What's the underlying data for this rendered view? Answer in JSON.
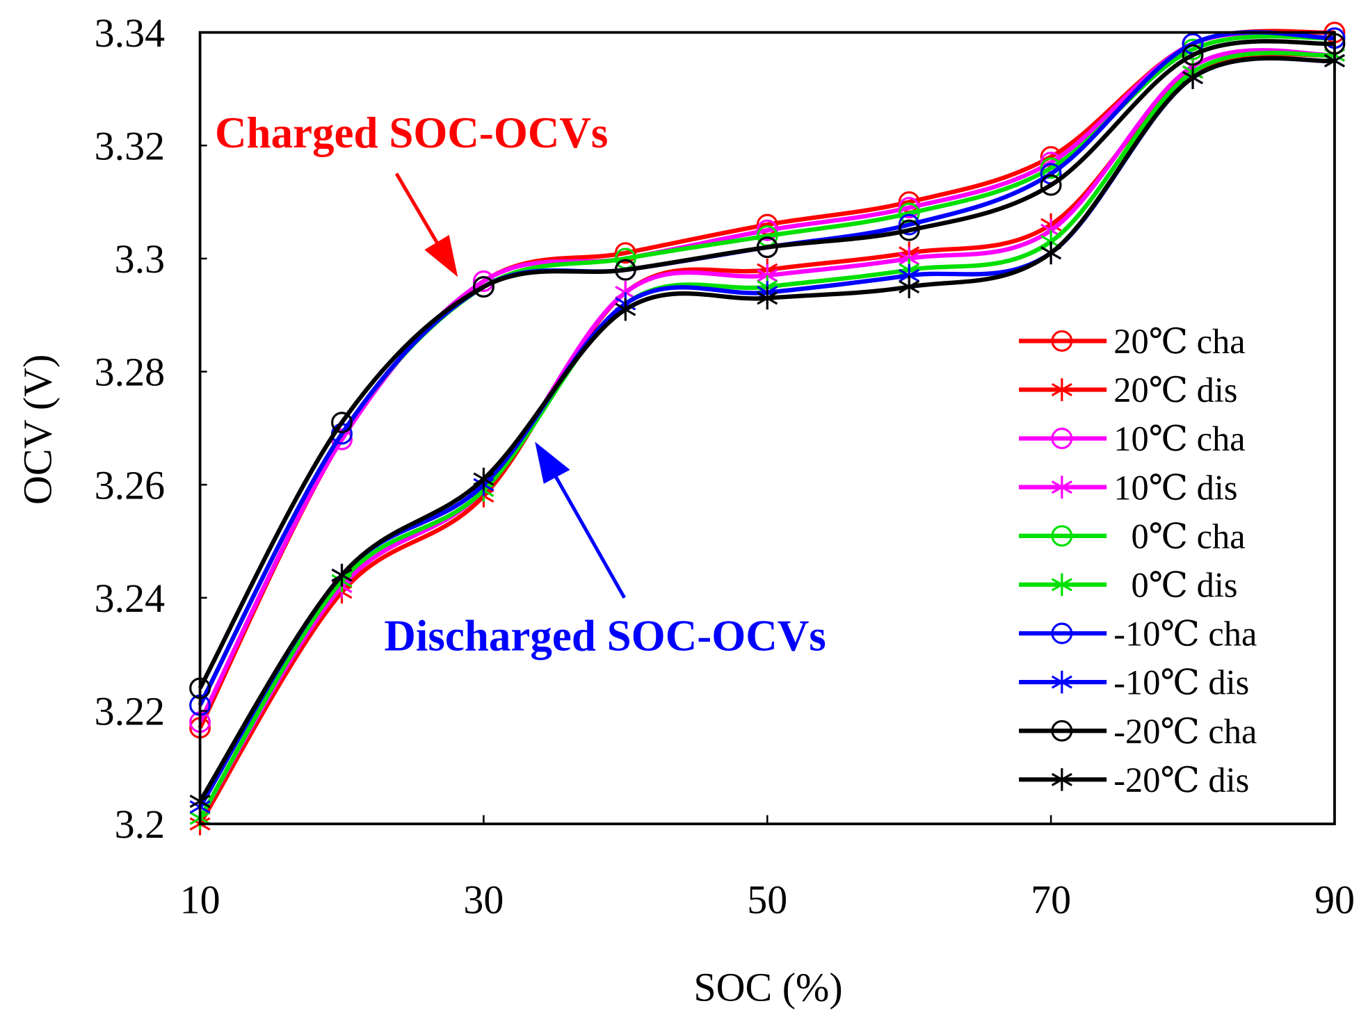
{
  "chart_data": {
    "type": "line",
    "title": "",
    "xlabel": "SOC (%)",
    "ylabel": "OCV (V)",
    "xlim": [
      10,
      90
    ],
    "ylim": [
      3.2,
      3.34
    ],
    "x_ticks": [
      10,
      30,
      50,
      70,
      90
    ],
    "x_tick_labels": [
      "10",
      "30",
      "50",
      "70",
      "90"
    ],
    "y_ticks": [
      3.2,
      3.22,
      3.24,
      3.26,
      3.28,
      3.3,
      3.32,
      3.34
    ],
    "y_tick_labels": [
      "3.2",
      "3.22",
      "3.24",
      "3.26",
      "3.28",
      "3.3",
      "3.32",
      "3.34"
    ],
    "grid": false,
    "legend_position": "right",
    "x": [
      10,
      20,
      30,
      40,
      50,
      60,
      70,
      80,
      90
    ],
    "series": [
      {
        "name": "20℃ cha",
        "color": "#ff0000",
        "marker": "circle",
        "values": [
          3.217,
          3.268,
          3.296,
          3.301,
          3.306,
          3.31,
          3.318,
          3.338,
          3.34
        ]
      },
      {
        "name": "20℃ dis",
        "color": "#ff0000",
        "marker": "star",
        "values": [
          3.2,
          3.241,
          3.258,
          3.294,
          3.298,
          3.301,
          3.306,
          3.333,
          3.336
        ]
      },
      {
        "name": "10℃ cha",
        "color": "#ff00ff",
        "marker": "circle",
        "values": [
          3.218,
          3.268,
          3.296,
          3.3,
          3.305,
          3.309,
          3.317,
          3.338,
          3.339
        ]
      },
      {
        "name": "10℃ dis",
        "color": "#ff00ff",
        "marker": "star",
        "values": [
          3.201,
          3.242,
          3.259,
          3.294,
          3.297,
          3.3,
          3.305,
          3.334,
          3.336
        ]
      },
      {
        "name": " 0℃ cha",
        "color": "#00e000",
        "marker": "circle",
        "values": [
          3.221,
          3.269,
          3.295,
          3.3,
          3.304,
          3.308,
          3.316,
          3.337,
          3.339
        ]
      },
      {
        "name": " 0℃ dis",
        "color": "#00e000",
        "marker": "star",
        "values": [
          3.201,
          3.243,
          3.259,
          3.292,
          3.295,
          3.298,
          3.303,
          3.333,
          3.336
        ]
      },
      {
        "name": "-10℃ cha",
        "color": "#0000ff",
        "marker": "circle",
        "values": [
          3.221,
          3.269,
          3.295,
          3.298,
          3.302,
          3.306,
          3.315,
          3.338,
          3.339
        ]
      },
      {
        "name": "-10℃ dis",
        "color": "#0000ff",
        "marker": "star",
        "values": [
          3.203,
          3.244,
          3.26,
          3.292,
          3.294,
          3.297,
          3.301,
          3.332,
          3.335
        ]
      },
      {
        "name": "-20℃ cha",
        "color": "#000000",
        "marker": "circle",
        "values": [
          3.224,
          3.271,
          3.295,
          3.298,
          3.302,
          3.305,
          3.313,
          3.336,
          3.338
        ]
      },
      {
        "name": "-20℃ dis",
        "color": "#000000",
        "marker": "star",
        "values": [
          3.204,
          3.244,
          3.261,
          3.291,
          3.293,
          3.295,
          3.301,
          3.332,
          3.335
        ]
      }
    ],
    "annotations": [
      {
        "text": "Charged SOC-OCVs",
        "color": "#ff0000",
        "points_to": [
          30,
          3.296
        ]
      },
      {
        "text": "Discharged SOC-OCVs",
        "color": "#0000ff",
        "points_to": [
          33,
          3.269
        ]
      }
    ]
  }
}
